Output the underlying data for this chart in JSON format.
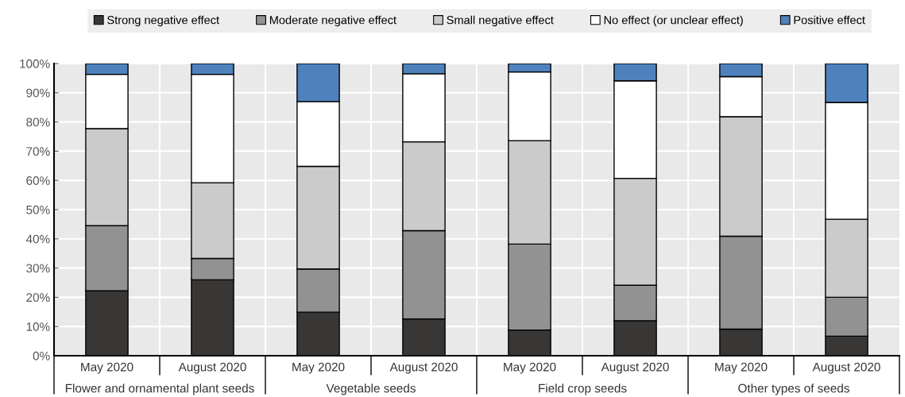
{
  "chart_data": {
    "type": "bar",
    "stacked": true,
    "categories": [
      "May 2020",
      "August 2020",
      "May 2020",
      "August 2020",
      "May 2020",
      "August 2020",
      "May 2020",
      "August 2020"
    ],
    "series": [
      {
        "name": "Strong negative effect",
        "color": "#383735",
        "values": [
          22.2,
          26.0,
          14.9,
          12.6,
          8.8,
          12.0,
          9.1,
          6.7
        ]
      },
      {
        "name": "Moderate negative effect",
        "color": "#929292",
        "values": [
          22.3,
          7.3,
          14.8,
          30.2,
          29.4,
          12.1,
          31.8,
          13.3
        ]
      },
      {
        "name": "Small negative effect",
        "color": "#cbcbcb",
        "values": [
          33.2,
          25.9,
          35.1,
          30.4,
          35.4,
          36.6,
          40.9,
          26.7
        ]
      },
      {
        "name": "No effect (or unclear effect)",
        "color": "#ffffff",
        "values": [
          18.6,
          37.1,
          22.2,
          23.3,
          23.5,
          33.4,
          13.7,
          40.0
        ]
      },
      {
        "name": "Positive effect",
        "color": "#4f81bd",
        "values": [
          3.7,
          3.7,
          13.0,
          3.5,
          2.9,
          5.9,
          4.5,
          13.3
        ]
      }
    ],
    "annotations": [
      "Flower and ornamental plant seeds",
      "Vegetable seeds",
      "Field crop seeds",
      "Other types of seeds"
    ],
    "ylim": [
      0,
      100
    ],
    "yticks": [
      {
        "value": 0,
        "label": "0%"
      },
      {
        "value": 10,
        "label": "10%"
      },
      {
        "value": 20,
        "label": "20%"
      },
      {
        "value": 30,
        "label": "30%"
      },
      {
        "value": 40,
        "label": "40%"
      },
      {
        "value": 50,
        "label": "50%"
      },
      {
        "value": 60,
        "label": "60%"
      },
      {
        "value": 70,
        "label": "70%"
      },
      {
        "value": 80,
        "label": "80%"
      },
      {
        "value": 90,
        "label": "90%"
      },
      {
        "value": 100,
        "label": "100%"
      }
    ],
    "grid": true,
    "legend": "top"
  }
}
